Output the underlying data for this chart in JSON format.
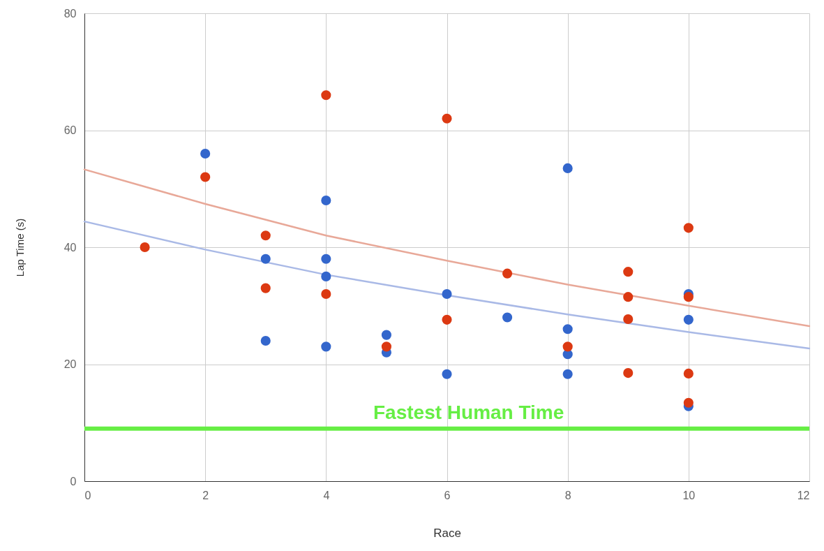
{
  "chart_data": {
    "type": "scatter",
    "xlabel": "Race",
    "ylabel": "Lap Time (s)",
    "xlim": [
      0,
      12
    ],
    "xticks": [
      0,
      2,
      4,
      6,
      8,
      10,
      12
    ],
    "ylim": [
      0,
      80
    ],
    "yticks": [
      0,
      20,
      40,
      60,
      80
    ],
    "grid": true,
    "marker": "circle",
    "series": [
      {
        "color": "#3366cc",
        "x": [
          2,
          3,
          3,
          4,
          4,
          4,
          4,
          5,
          5,
          6,
          6,
          7,
          8,
          8,
          8,
          8,
          10,
          10,
          10
        ],
        "values": [
          56,
          38,
          24,
          48,
          38,
          35,
          23,
          25,
          22,
          32,
          18.3,
          28,
          53.5,
          26,
          21.7,
          18.3,
          32,
          27.6,
          12.8
        ]
      },
      {
        "color": "#dc3912",
        "x": [
          1,
          2,
          3,
          3,
          4,
          4,
          5,
          6,
          6,
          7,
          8,
          9,
          9,
          9,
          9,
          10,
          10,
          10,
          10
        ],
        "values": [
          40,
          52,
          42,
          33,
          66,
          32,
          23,
          62,
          27.6,
          35.5,
          23,
          35.8,
          31.5,
          27.7,
          18.5,
          43.3,
          31.5,
          18.4,
          13.4
        ]
      },
      {
        "type": "line",
        "color": "#a9b9e6",
        "marker": "none",
        "x": [
          0,
          2,
          4,
          6,
          8,
          10,
          12
        ],
        "values": [
          44.4,
          39.6,
          35.3,
          31.8,
          28.5,
          25.5,
          22.7
        ]
      },
      {
        "type": "line",
        "color": "#e8a898",
        "marker": "none",
        "x": [
          0,
          2,
          4,
          6,
          8,
          10,
          12
        ],
        "values": [
          53.3,
          47.4,
          42,
          37.7,
          33.6,
          30,
          26.5
        ]
      }
    ],
    "ref_lines": [
      {
        "axis": "y",
        "value": 9,
        "label": "Fastest Human Time",
        "color": "#66ee44"
      }
    ]
  }
}
